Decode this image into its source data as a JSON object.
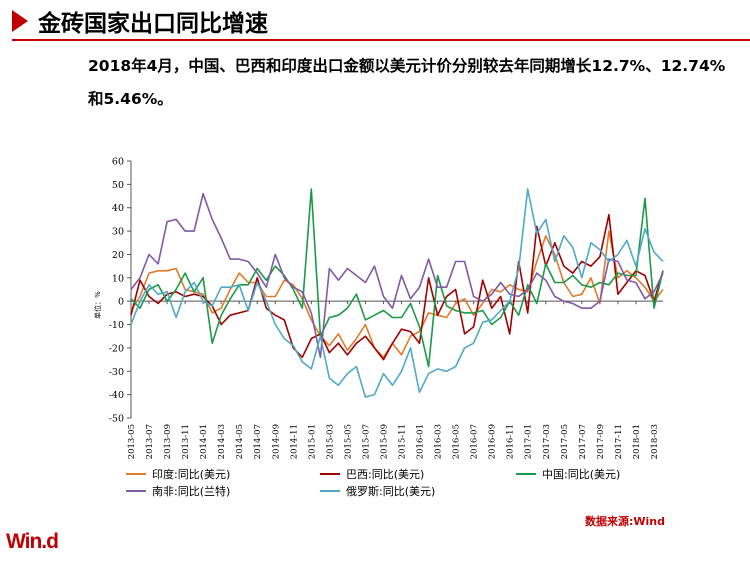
{
  "header": {
    "title": "金砖国家出口同比增速",
    "subtitle": "2018年4月，中国、巴西和印度出口金额以美元计价分别较去年同期增长12.7%、12.74%和5.46%。"
  },
  "source": "数据来源:Wind",
  "logo": "Win.d",
  "colors": {
    "accent": "#c00000"
  },
  "chart_data": {
    "type": "line",
    "y_unit_label": "单位：%",
    "ylim": [
      -50,
      60
    ],
    "yticks": [
      -50,
      -40,
      -30,
      -20,
      -10,
      0,
      10,
      20,
      30,
      40,
      50,
      60
    ],
    "x": [
      "2013-05",
      "2013-06",
      "2013-07",
      "2013-08",
      "2013-09",
      "2013-10",
      "2013-11",
      "2013-12",
      "2014-01",
      "2014-02",
      "2014-03",
      "2014-04",
      "2014-05",
      "2014-06",
      "2014-07",
      "2014-08",
      "2014-09",
      "2014-10",
      "2014-11",
      "2014-12",
      "2015-01",
      "2015-02",
      "2015-03",
      "2015-04",
      "2015-05",
      "2015-06",
      "2015-07",
      "2015-08",
      "2015-09",
      "2015-10",
      "2015-11",
      "2015-12",
      "2016-01",
      "2016-02",
      "2016-03",
      "2016-04",
      "2016-05",
      "2016-06",
      "2016-07",
      "2016-08",
      "2016-09",
      "2016-10",
      "2016-11",
      "2016-12",
      "2017-01",
      "2017-02",
      "2017-03",
      "2017-04",
      "2017-05",
      "2017-06",
      "2017-07",
      "2017-08",
      "2017-09",
      "2017-10",
      "2017-11",
      "2017-12",
      "2018-01",
      "2018-02",
      "2018-03",
      "2018-04"
    ],
    "xtick_labels": [
      "2013-05",
      "2013-07",
      "2013-09",
      "2013-11",
      "2014-01",
      "2014-03",
      "2014-05",
      "2014-07",
      "2014-09",
      "2014-11",
      "2015-01",
      "2015-03",
      "2015-05",
      "2015-07",
      "2015-09",
      "2015-11",
      "2016-01",
      "2016-03",
      "2016-05",
      "2016-07",
      "2016-09",
      "2016-11",
      "2017-01",
      "2017-03",
      "2017-05",
      "2017-07",
      "2017-09",
      "2017-11",
      "2018-01",
      "2018-03"
    ],
    "grid": false,
    "legend_position": "bottom",
    "series": [
      {
        "name": "印度:同比(美元)",
        "color": "#e07b2a",
        "values": [
          -4,
          2,
          12,
          13,
          13,
          14,
          5,
          4,
          3,
          -5,
          -3,
          5,
          12,
          8,
          8,
          2,
          2,
          9,
          7,
          1,
          -8,
          -15,
          -19,
          -14,
          -21,
          -16,
          -10,
          -20,
          -24,
          -18,
          -23,
          -15,
          -13,
          -5,
          -6,
          -7,
          -1,
          1,
          -6,
          -1,
          5,
          4,
          7,
          5,
          4,
          17,
          28,
          20,
          8,
          2,
          3,
          10,
          -1,
          30,
          10,
          13,
          10,
          6,
          0,
          5
        ]
      },
      {
        "name": "巴西:同比(美元)",
        "color": "#a00000",
        "values": [
          -6,
          9,
          2,
          -1,
          3,
          4,
          2,
          3,
          2,
          -2,
          -10,
          -6,
          -5,
          -4,
          10,
          -3,
          -6,
          -8,
          -20,
          -24,
          -16,
          -14,
          -22,
          -18,
          -23,
          -18,
          -15,
          -20,
          -25,
          -18,
          -12,
          -13,
          -18,
          10,
          -6,
          2,
          5,
          -14,
          -11,
          9,
          -3,
          2,
          -14,
          17,
          -5,
          32,
          15,
          25,
          15,
          12,
          17,
          15,
          19,
          37,
          3,
          8,
          13,
          11,
          0,
          13
        ]
      },
      {
        "name": "中国:同比(美元)",
        "color": "#1a9a46",
        "values": [
          1,
          -3,
          5,
          7,
          0,
          5,
          12,
          4,
          10,
          -18,
          -6,
          1,
          7,
          7,
          14,
          9,
          15,
          11,
          5,
          -3,
          48,
          -15,
          -7,
          -6,
          -3,
          3,
          -8,
          -6,
          -4,
          -7,
          -7,
          -1,
          -11,
          -28,
          11,
          -2,
          -4,
          -5,
          -5,
          -4,
          -10,
          -7,
          0,
          -6,
          7,
          -1,
          16,
          8,
          8,
          11,
          7,
          6,
          8,
          7,
          12,
          11,
          11,
          44,
          -3,
          13
        ]
      },
      {
        "name": "南非:同比(兰特)",
        "color": "#7e5aa8",
        "values": [
          5,
          10,
          20,
          16,
          34,
          35,
          30,
          30,
          46,
          35,
          27,
          18,
          18,
          17,
          12,
          6,
          20,
          10,
          6,
          4,
          -5,
          -24,
          14,
          9,
          14,
          11,
          8,
          15,
          2,
          -3,
          11,
          1,
          6,
          18,
          6,
          6,
          17,
          17,
          2,
          0,
          3,
          8,
          3,
          2,
          5,
          12,
          9,
          2,
          0,
          -1,
          -3,
          -3,
          0,
          18,
          17,
          9,
          8,
          1,
          4,
          12
        ]
      },
      {
        "name": "俄罗斯:同比(美元)",
        "color": "#4ea9c9",
        "values": [
          -10,
          0,
          7,
          3,
          4,
          -7,
          4,
          8,
          0,
          -2,
          6,
          6,
          7,
          -4,
          8,
          0,
          -10,
          -16,
          -19,
          -26,
          -29,
          -15,
          -33,
          -36,
          -31,
          -28,
          -41,
          -40,
          -31,
          -36,
          -30,
          -20,
          -39,
          -31,
          -29,
          -30,
          -28,
          -20,
          -18,
          -9,
          -8,
          -4,
          0,
          14,
          48,
          29,
          35,
          17,
          28,
          23,
          10,
          25,
          22,
          17,
          20,
          26,
          15,
          31,
          21,
          17
        ]
      }
    ]
  }
}
